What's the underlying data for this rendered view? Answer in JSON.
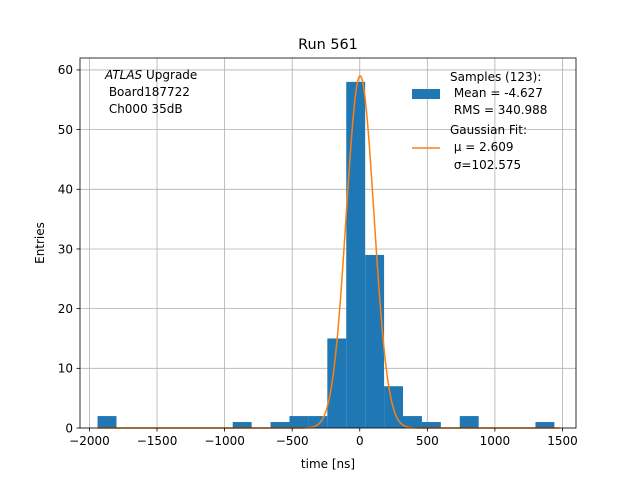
{
  "chart_data": {
    "type": "bar",
    "title": "Run 561",
    "xlabel": "time [ns]",
    "ylabel": "Entries",
    "xlim": [
      -2070,
      1600
    ],
    "ylim": [
      0,
      62
    ],
    "xticks": [
      -2000,
      -1500,
      -1000,
      -500,
      0,
      500,
      1000,
      1500
    ],
    "xtick_labels": [
      "−2000",
      "−1500",
      "−1000",
      "−500",
      "0",
      "500",
      "1000",
      "1500"
    ],
    "yticks": [
      0,
      10,
      20,
      30,
      40,
      50,
      60
    ],
    "ytick_labels": [
      "0",
      "10",
      "20",
      "30",
      "40",
      "50",
      "60"
    ],
    "grid": true,
    "legend_position": "top-right",
    "annotation": {
      "italic": "ATLAS",
      "line1_rest": " Upgrade",
      "line2": " Board187722",
      "line3": " Ch000 35dB"
    },
    "histogram": {
      "name": "Samples (123):",
      "stats": [
        " Mean = -4.627",
        " RMS = 340.988"
      ],
      "color": "#1f77b4",
      "bins": [
        {
          "x0": -1940,
          "x1": -1800,
          "count": 2
        },
        {
          "x0": -940,
          "x1": -800,
          "count": 1
        },
        {
          "x0": -660,
          "x1": -520,
          "count": 1
        },
        {
          "x0": -520,
          "x1": -380,
          "count": 2
        },
        {
          "x0": -380,
          "x1": -240,
          "count": 2
        },
        {
          "x0": -240,
          "x1": -100,
          "count": 15
        },
        {
          "x0": -100,
          "x1": 40,
          "count": 58
        },
        {
          "x0": 40,
          "x1": 180,
          "count": 29
        },
        {
          "x0": 180,
          "x1": 320,
          "count": 7
        },
        {
          "x0": 320,
          "x1": 460,
          "count": 2
        },
        {
          "x0": 460,
          "x1": 600,
          "count": 1
        },
        {
          "x0": 740,
          "x1": 880,
          "count": 2
        },
        {
          "x0": 1300,
          "x1": 1440,
          "count": 1
        }
      ]
    },
    "fit": {
      "name": "Gaussian Fit:",
      "mu_label": " μ = 2.609",
      "sigma_label": " σ=102.575",
      "mu": 2.609,
      "sigma": 102.575,
      "amplitude": 59,
      "x_range": [
        -1940,
        1480
      ],
      "color": "#ff7f0e"
    }
  }
}
